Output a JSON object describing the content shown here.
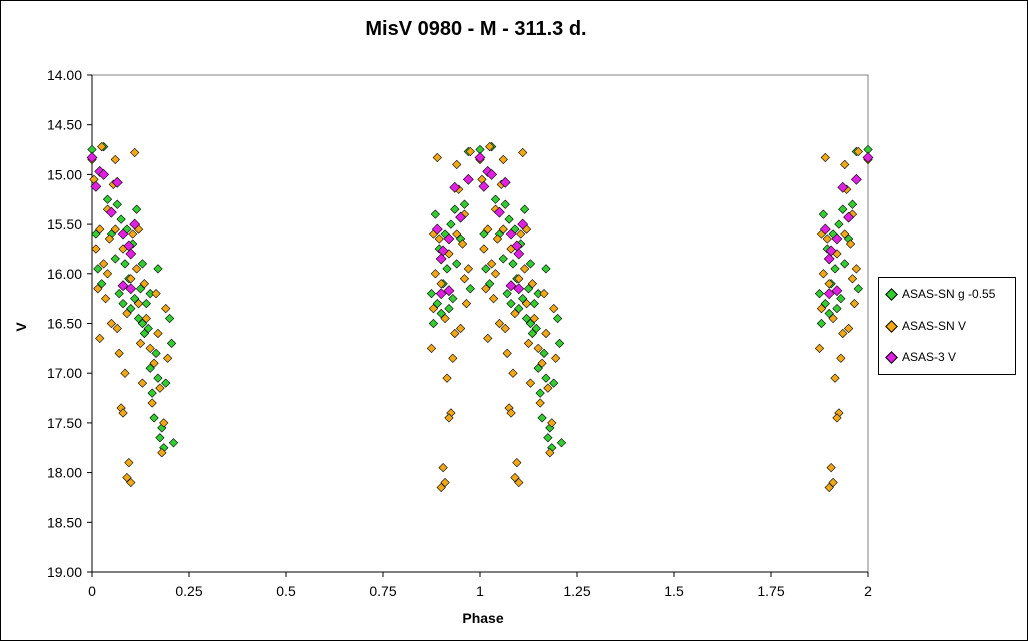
{
  "chart_data": {
    "type": "scatter",
    "title": "MisV 0980 - M - 311.3 d.",
    "xlabel": "Phase",
    "ylabel": "V",
    "xlim": [
      0,
      2
    ],
    "ylim": [
      19.0,
      14.0
    ],
    "y_inverted": true,
    "grid": false,
    "legend_position": "right",
    "x_ticks": [
      "0",
      "0.25",
      "0.5",
      "0.75",
      "1",
      "1.25",
      "1.5",
      "1.75",
      "2"
    ],
    "y_ticks": [
      "14.00",
      "14.50",
      "15.00",
      "15.50",
      "16.00",
      "16.50",
      "17.00",
      "17.50",
      "18.00",
      "18.50",
      "19.00"
    ],
    "series": [
      {
        "name": "ASAS-SN g -0.55",
        "color": "#33cc33",
        "points": [
          [
            0.0,
            14.75
          ],
          [
            0.01,
            15.6
          ],
          [
            0.015,
            15.95
          ],
          [
            0.025,
            16.1
          ],
          [
            0.03,
            14.72
          ],
          [
            0.04,
            15.25
          ],
          [
            0.05,
            15.6
          ],
          [
            0.06,
            15.85
          ],
          [
            0.065,
            15.3
          ],
          [
            0.07,
            16.2
          ],
          [
            0.075,
            15.45
          ],
          [
            0.08,
            16.3
          ],
          [
            0.085,
            15.9
          ],
          [
            0.09,
            15.55
          ],
          [
            0.095,
            16.05
          ],
          [
            0.1,
            16.35
          ],
          [
            0.105,
            15.7
          ],
          [
            0.11,
            16.25
          ],
          [
            0.115,
            15.35
          ],
          [
            0.12,
            16.45
          ],
          [
            0.125,
            16.15
          ],
          [
            0.13,
            16.5
          ],
          [
            0.135,
            16.6
          ],
          [
            0.14,
            16.3
          ],
          [
            0.145,
            16.55
          ],
          [
            0.15,
            16.95
          ],
          [
            0.155,
            17.2
          ],
          [
            0.16,
            17.45
          ],
          [
            0.165,
            16.8
          ],
          [
            0.17,
            17.05
          ],
          [
            0.175,
            17.65
          ],
          [
            0.18,
            17.55
          ],
          [
            0.185,
            17.75
          ],
          [
            0.19,
            17.1
          ],
          [
            0.2,
            16.45
          ],
          [
            0.205,
            16.7
          ],
          [
            0.21,
            17.7
          ],
          [
            0.13,
            15.9
          ],
          [
            0.15,
            16.2
          ],
          [
            0.17,
            15.95
          ]
        ]
      },
      {
        "name": "ASAS-SN V",
        "color": "#f0a818",
        "points": [
          [
            0.0,
            14.85
          ],
          [
            0.005,
            15.05
          ],
          [
            0.01,
            15.75
          ],
          [
            0.015,
            16.15
          ],
          [
            0.02,
            15.55
          ],
          [
            0.025,
            14.72
          ],
          [
            0.03,
            15.9
          ],
          [
            0.035,
            16.25
          ],
          [
            0.04,
            16.0
          ],
          [
            0.045,
            15.65
          ],
          [
            0.05,
            16.5
          ],
          [
            0.055,
            15.1
          ],
          [
            0.06,
            14.85
          ],
          [
            0.065,
            16.55
          ],
          [
            0.07,
            16.8
          ],
          [
            0.075,
            17.35
          ],
          [
            0.08,
            17.4
          ],
          [
            0.085,
            17.0
          ],
          [
            0.09,
            16.4
          ],
          [
            0.095,
            17.9
          ],
          [
            0.1,
            18.1
          ],
          [
            0.105,
            15.6
          ],
          [
            0.11,
            14.78
          ],
          [
            0.115,
            15.95
          ],
          [
            0.12,
            16.3
          ],
          [
            0.125,
            16.7
          ],
          [
            0.13,
            17.1
          ],
          [
            0.135,
            16.1
          ],
          [
            0.14,
            16.45
          ],
          [
            0.15,
            16.75
          ],
          [
            0.155,
            17.3
          ],
          [
            0.16,
            16.9
          ],
          [
            0.165,
            16.2
          ],
          [
            0.17,
            16.6
          ],
          [
            0.175,
            17.15
          ],
          [
            0.18,
            17.8
          ],
          [
            0.185,
            17.5
          ],
          [
            0.19,
            16.35
          ],
          [
            0.195,
            16.85
          ],
          [
            0.06,
            15.55
          ],
          [
            0.08,
            15.75
          ],
          [
            0.1,
            16.05
          ],
          [
            0.04,
            15.35
          ],
          [
            0.02,
            16.65
          ],
          [
            0.09,
            18.05
          ],
          [
            0.12,
            15.55
          ]
        ]
      },
      {
        "name": "ASAS-3 V",
        "color": "#e020e0",
        "points": [
          [
            0.0,
            14.83
          ],
          [
            0.01,
            15.12
          ],
          [
            0.02,
            14.97
          ],
          [
            0.03,
            15.0
          ],
          [
            0.05,
            15.38
          ],
          [
            0.065,
            15.08
          ],
          [
            0.08,
            15.6
          ],
          [
            0.095,
            15.72
          ],
          [
            0.1,
            15.8
          ],
          [
            0.11,
            15.5
          ],
          [
            0.08,
            16.12
          ],
          [
            0.1,
            16.15
          ]
        ]
      }
    ]
  },
  "legend": {
    "items": [
      {
        "label": "ASAS-SN g -0.55",
        "color": "#33cc33"
      },
      {
        "label": "ASAS-SN V",
        "color": "#f0a818"
      },
      {
        "label": "ASAS-3 V",
        "color": "#e020e0"
      }
    ]
  }
}
